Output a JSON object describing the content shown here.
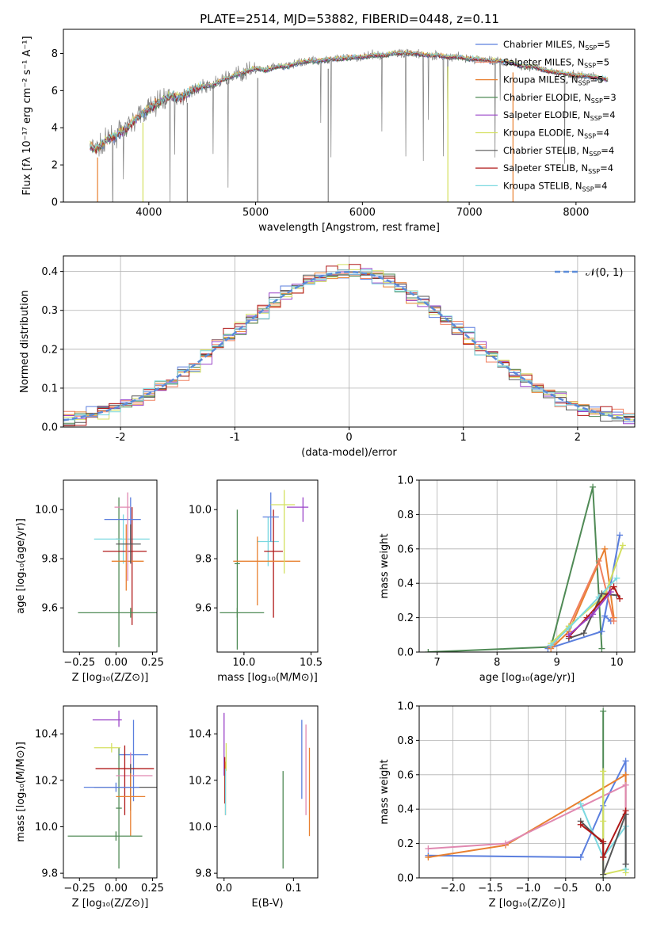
{
  "figure": {
    "title": "PLATE=2514, MJD=53882, FIBERID=0448, z=0.11"
  },
  "chart_data": [
    {
      "id": "spectrum",
      "type": "line",
      "xlabel": "wavelength [Angstrom, rest frame]",
      "ylabel": "Flux [fλ 10⁻¹⁷ erg cm⁻² s⁻¹ A⁻¹]",
      "xlim": [
        3200,
        8550
      ],
      "ylim": [
        0,
        9.3
      ],
      "xticks": [
        4000,
        5000,
        6000,
        7000,
        8000
      ],
      "yticks": [
        0,
        2,
        4,
        6,
        8
      ],
      "legend_position": "top-right",
      "observed": {
        "x": [
          3450,
          3500,
          3600,
          3700,
          3800,
          3900,
          4000,
          4100,
          4200,
          4300,
          4400,
          4500,
          4600,
          4700,
          4800,
          4900,
          5000,
          5100,
          5200,
          5300,
          5400,
          5500,
          5600,
          5700,
          5800,
          5900,
          6000,
          6100,
          6200,
          6300,
          6400,
          6500,
          6600,
          6700,
          6800,
          6900,
          7000,
          7100,
          7200,
          7300,
          7400,
          7500,
          7600,
          7700,
          7800,
          7900,
          8000,
          8100,
          8200,
          8300
        ],
        "y": [
          3.0,
          2.8,
          3.3,
          3.6,
          4.0,
          4.6,
          5.0,
          5.4,
          5.7,
          5.6,
          6.0,
          6.2,
          6.3,
          6.6,
          6.8,
          7.0,
          7.2,
          7.1,
          7.3,
          7.3,
          7.5,
          7.6,
          7.6,
          7.7,
          7.7,
          7.8,
          7.8,
          7.9,
          7.9,
          8.0,
          8.0,
          8.0,
          7.9,
          7.9,
          7.8,
          7.8,
          7.7,
          7.7,
          7.6,
          7.6,
          7.5,
          7.3,
          7.3,
          7.1,
          7.0,
          6.9,
          6.8,
          6.8,
          6.7,
          6.6
        ]
      },
      "series": [
        {
          "name": "Chabrier MILES, N",
          "sub": "SSP",
          "suffix": "=5",
          "color": "#5b7fde"
        },
        {
          "name": "Salpeter MILES, N",
          "sub": "SSP",
          "suffix": "=5",
          "color": "#f08060"
        },
        {
          "name": "Kroupa MILES, N",
          "sub": "SSP",
          "suffix": "=5",
          "color": "#e88030"
        },
        {
          "name": "Chabrier ELODIE, N",
          "sub": "SSP",
          "suffix": "=3",
          "color": "#4f8a55"
        },
        {
          "name": "Salpeter ELODIE, N",
          "sub": "SSP",
          "suffix": "=4",
          "color": "#9a44c8"
        },
        {
          "name": "Kroupa ELODIE, N",
          "sub": "SSP",
          "suffix": "=4",
          "color": "#d4e060"
        },
        {
          "name": "Chabrier STELIB, N",
          "sub": "SSP",
          "suffix": "=4",
          "color": "#555555"
        },
        {
          "name": "Salpeter STELIB, N",
          "sub": "SSP",
          "suffix": "=4",
          "color": "#b01818"
        },
        {
          "name": "Kroupa STELIB, N",
          "sub": "SSP",
          "suffix": "=4",
          "color": "#7ad8e0"
        }
      ]
    },
    {
      "id": "residuals",
      "type": "histogram",
      "xlabel": "(data-model)/error",
      "ylabel": "Normed distribution",
      "xlim": [
        -2.5,
        2.5
      ],
      "ylim": [
        0,
        0.44
      ],
      "xticks": [
        -2,
        -1,
        0,
        1,
        2
      ],
      "yticks": [
        0.0,
        0.1,
        0.2,
        0.3,
        0.4
      ],
      "grid": true,
      "legend_position": "top-right",
      "legend_label": "𝒩(0, 1)",
      "reference_color": "#5b8bd8",
      "bin_width": 0.1
    },
    {
      "id": "age-vs-Z",
      "type": "errorbar",
      "xlabel": "Z [log₁₀(Z/Z⊙)]",
      "ylabel": "age  [log₁₀(age/yr)]",
      "xlim": [
        -0.36,
        0.28
      ],
      "ylim": [
        9.42,
        10.12
      ],
      "xticks": [
        -0.25,
        0.0,
        0.25
      ],
      "xticklabels": [
        "−0.25",
        "0.00",
        "0.25"
      ],
      "yticks": [
        9.6,
        9.8,
        10.0
      ],
      "points": [
        {
          "x": 0.02,
          "xerr": [
            0.02,
            0.02
          ],
          "y": 9.88,
          "yerr": [
            0.44,
            0.17
          ],
          "color": "#4f8a55"
        },
        {
          "x": 0.05,
          "xerr": [
            0.2,
            0.18
          ],
          "y": 9.88,
          "yerr": [
            0.1,
            0.1
          ],
          "color": "#7ad8e0"
        },
        {
          "x": 0.11,
          "xerr": [
            0.2,
            0.1
          ],
          "y": 9.83,
          "yerr": [
            0.3,
            0.18
          ],
          "color": "#b01818"
        },
        {
          "x": 0.07,
          "xerr": [
            0.1,
            0.12
          ],
          "y": 9.79,
          "yerr": [
            0.12,
            0.15
          ],
          "color": "#e88030"
        },
        {
          "x": 0.1,
          "xerr": [
            0.18,
            0.07
          ],
          "y": 9.96,
          "yerr": [
            0.1,
            0.09
          ],
          "color": "#5b7fde"
        },
        {
          "x": 0.08,
          "xerr": [
            0.09,
            0.02
          ],
          "y": 10.01,
          "yerr": [
            0.3,
            0.06
          ],
          "color": "#e088b0"
        },
        {
          "x": 0.1,
          "xerr": [
            0.36,
            0.18
          ],
          "y": 9.58,
          "yerr": [
            0.02,
            0.02
          ],
          "color": "#4f8a55"
        },
        {
          "x": 0.1,
          "xerr": [
            0.1,
            0.07
          ],
          "y": 9.86,
          "yerr": [
            0.08,
            0.08
          ],
          "color": "#555555"
        }
      ]
    },
    {
      "id": "age-vs-mass",
      "type": "errorbar",
      "xlabel": "mass [log₁₀(M/M⊙)]",
      "ylabel": "",
      "xlim": [
        9.8,
        10.55
      ],
      "ylim": [
        9.42,
        10.12
      ],
      "xticks": [
        10.0,
        10.5
      ],
      "xticklabels": [
        "10.0",
        "10.5"
      ],
      "yticks": [
        9.6,
        9.8,
        10.0
      ],
      "points": [
        {
          "x": 9.95,
          "xerr": [
            0.02,
            0.02
          ],
          "y": 9.78,
          "yerr": [
            0.35,
            0.22
          ],
          "color": "#4f8a55"
        },
        {
          "x": 10.18,
          "xerr": [
            0.08,
            0.08
          ],
          "y": 9.87,
          "yerr": [
            0.1,
            0.1
          ],
          "color": "#7ad8e0"
        },
        {
          "x": 10.22,
          "xerr": [
            0.07,
            0.07
          ],
          "y": 9.83,
          "yerr": [
            0.27,
            0.17
          ],
          "color": "#b01818"
        },
        {
          "x": 10.1,
          "xerr": [
            0.18,
            0.32
          ],
          "y": 9.79,
          "yerr": [
            0.18,
            0.1
          ],
          "color": "#e88030"
        },
        {
          "x": 10.2,
          "xerr": [
            0.06,
            0.06
          ],
          "y": 9.97,
          "yerr": [
            0.1,
            0.1
          ],
          "color": "#5b7fde"
        },
        {
          "x": 10.3,
          "xerr": [
            0.1,
            0.08
          ],
          "y": 10.02,
          "yerr": [
            0.28,
            0.06
          ],
          "color": "#d4e060"
        },
        {
          "x": 10.44,
          "xerr": [
            0.12,
            0.04
          ],
          "y": 10.01,
          "yerr": [
            0.06,
            0.04
          ],
          "color": "#9a44c8"
        },
        {
          "x": 9.95,
          "xerr": [
            0.13,
            0.2
          ],
          "y": 9.58,
          "yerr": [
            0.02,
            0.02
          ],
          "color": "#4f8a55"
        }
      ]
    },
    {
      "id": "weight-vs-age",
      "type": "line",
      "xlabel": "age  [log₁₀(age/yr)]",
      "ylabel": "mass weight",
      "xlim": [
        6.7,
        10.3
      ],
      "ylim": [
        0,
        1.0
      ],
      "xticks": [
        7,
        8,
        9,
        10
      ],
      "yticks": [
        0.0,
        0.2,
        0.4,
        0.6,
        0.8,
        1.0
      ],
      "grid": true,
      "series": [
        {
          "color": "#4f8a55",
          "x": [
            6.85,
            8.9,
            9.6,
            9.75
          ],
          "y": [
            0.0,
            0.03,
            0.96,
            0.02
          ]
        },
        {
          "color": "#5b7fde",
          "x": [
            8.85,
            9.75,
            10.05,
            9.8,
            9.9
          ],
          "y": [
            0.02,
            0.12,
            0.68,
            0.21,
            0.18
          ]
        },
        {
          "color": "#e88030",
          "x": [
            8.9,
            9.2,
            9.8,
            9.95
          ],
          "y": [
            0.02,
            0.12,
            0.6,
            0.2
          ]
        },
        {
          "color": "#f08060",
          "x": [
            8.9,
            9.2,
            9.7,
            9.95
          ],
          "y": [
            0.03,
            0.15,
            0.53,
            0.18
          ]
        },
        {
          "color": "#d4e060",
          "x": [
            8.9,
            9.2,
            9.8,
            10.1
          ],
          "y": [
            0.05,
            0.15,
            0.33,
            0.62
          ]
        },
        {
          "color": "#7ad8e0",
          "x": [
            8.9,
            9.2,
            9.7,
            10.0
          ],
          "y": [
            0.04,
            0.14,
            0.32,
            0.43
          ]
        },
        {
          "color": "#555555",
          "x": [
            9.2,
            9.45,
            9.75,
            10.0
          ],
          "y": [
            0.08,
            0.11,
            0.34,
            0.33
          ]
        },
        {
          "color": "#b01818",
          "x": [
            9.2,
            9.5,
            9.95,
            10.05
          ],
          "y": [
            0.09,
            0.2,
            0.38,
            0.31
          ]
        },
        {
          "color": "#9a44c8",
          "x": [
            9.2,
            9.6,
            9.9
          ],
          "y": [
            0.1,
            0.22,
            0.35
          ]
        }
      ]
    },
    {
      "id": "mass-vs-Z",
      "type": "errorbar",
      "xlabel": "Z [log₁₀(Z/Z⊙)]",
      "ylabel": "mass [log₁₀(M/M⊙)]",
      "xlim": [
        -0.36,
        0.28
      ],
      "ylim": [
        9.78,
        10.52
      ],
      "xticks": [
        -0.25,
        0.0,
        0.25
      ],
      "xticklabels": [
        "−0.25",
        "0.00",
        "0.25"
      ],
      "yticks": [
        9.8,
        10.0,
        10.2,
        10.4
      ],
      "points": [
        {
          "x": 0.02,
          "xerr": [
            0.02,
            0.02
          ],
          "y": 10.08,
          "yerr": [
            0.26,
            0.26
          ],
          "color": "#4f8a55"
        },
        {
          "x": 0.02,
          "xerr": [
            0.18,
            0.02
          ],
          "y": 10.46,
          "yerr": [
            0.03,
            0.04
          ],
          "color": "#9a44c8"
        },
        {
          "x": -0.03,
          "xerr": [
            0.12,
            0.06
          ],
          "y": 10.34,
          "yerr": [
            0.02,
            0.02
          ],
          "color": "#d4e060"
        },
        {
          "x": 0.12,
          "xerr": [
            0.1,
            0.1
          ],
          "y": 10.31,
          "yerr": [
            0.2,
            0.15
          ],
          "color": "#5b7fde"
        },
        {
          "x": 0.1,
          "xerr": [
            0.1,
            0.15
          ],
          "y": 10.22,
          "yerr": [
            0.15,
            0.1
          ],
          "color": "#e088b0"
        },
        {
          "x": 0.06,
          "xerr": [
            0.2,
            0.2
          ],
          "y": 10.25,
          "yerr": [
            0.2,
            0.1
          ],
          "color": "#b01818"
        },
        {
          "x": 0.1,
          "xerr": [
            0.25,
            0.2
          ],
          "y": 10.17,
          "yerr": [
            0.1,
            0.1
          ],
          "color": "#555555"
        },
        {
          "x": 0.1,
          "xerr": [
            0.1,
            0.1
          ],
          "y": 10.13,
          "yerr": [
            0.17,
            0.1
          ],
          "color": "#e88030"
        },
        {
          "x": 0.0,
          "xerr": [
            0.33,
            0.18
          ],
          "y": 9.96,
          "yerr": [
            0.02,
            0.02
          ],
          "color": "#4f8a55"
        },
        {
          "x": 0.0,
          "xerr": [
            0.22,
            0.16
          ],
          "y": 10.17,
          "yerr": [
            0.02,
            0.02
          ],
          "color": "#5b7fde"
        }
      ]
    },
    {
      "id": "mass-vs-EBV",
      "type": "errorbar",
      "xlabel": "E(B-V)",
      "ylabel": "",
      "xlim": [
        -0.01,
        0.135
      ],
      "ylim": [
        9.78,
        10.52
      ],
      "xticks": [
        0.0,
        0.1
      ],
      "xticklabels": [
        "0.0",
        "0.1"
      ],
      "yticks": [
        9.8,
        10.0,
        10.2,
        10.4
      ],
      "points": [
        {
          "x": 0.0,
          "xerr": [
            0.0,
            0.0
          ],
          "y": 10.35,
          "yerr": [
            0.13,
            0.14
          ],
          "color": "#9a44c8"
        },
        {
          "x": 0.001,
          "xerr": [
            0.0,
            0.0
          ],
          "y": 10.2,
          "yerr": [
            0.1,
            0.1
          ],
          "color": "#b01818"
        },
        {
          "x": 0.002,
          "xerr": [
            0.0,
            0.0
          ],
          "y": 10.18,
          "yerr": [
            0.13,
            0.1
          ],
          "color": "#e88030"
        },
        {
          "x": 0.003,
          "xerr": [
            0.0,
            0.0
          ],
          "y": 10.3,
          "yerr": [
            0.06,
            0.06
          ],
          "color": "#d4e060"
        },
        {
          "x": 0.002,
          "xerr": [
            0.0,
            0.0
          ],
          "y": 10.15,
          "yerr": [
            0.1,
            0.1
          ],
          "color": "#7ad8e0"
        },
        {
          "x": 0.085,
          "xerr": [
            0.0,
            0.0
          ],
          "y": 10.03,
          "yerr": [
            0.21,
            0.21
          ],
          "color": "#4f8a55"
        },
        {
          "x": 0.112,
          "xerr": [
            0.0,
            0.0
          ],
          "y": 10.29,
          "yerr": [
            0.17,
            0.17
          ],
          "color": "#5b7fde"
        },
        {
          "x": 0.118,
          "xerr": [
            0.0,
            0.0
          ],
          "y": 10.24,
          "yerr": [
            0.19,
            0.2
          ],
          "color": "#e088b0"
        },
        {
          "x": 0.123,
          "xerr": [
            0.0,
            0.0
          ],
          "y": 10.15,
          "yerr": [
            0.19,
            0.19
          ],
          "color": "#e88030"
        }
      ]
    },
    {
      "id": "weight-vs-Z",
      "type": "line",
      "xlabel": "Z [log₁₀(Z/Z⊙)]",
      "ylabel": "mass weight",
      "xlim": [
        -2.45,
        0.42
      ],
      "ylim": [
        0,
        1.0
      ],
      "xticks": [
        -2.0,
        -1.5,
        -1.0,
        -0.5,
        0.0
      ],
      "xticklabels": [
        "−2.0",
        "−1.5",
        "−1.0",
        "−0.5",
        "0.0"
      ],
      "yticks": [
        0.0,
        0.2,
        0.4,
        0.6,
        0.8,
        1.0
      ],
      "grid": true,
      "series": [
        {
          "color": "#4f8a55",
          "x": [
            0.0,
            0.0,
            0.0
          ],
          "y": [
            0.12,
            0.97,
            0.0
          ]
        },
        {
          "color": "#5b7fde",
          "x": [
            -2.33,
            -0.3,
            0.0,
            0.3,
            0.3
          ],
          "y": [
            0.13,
            0.12,
            0.42,
            0.68,
            0.08
          ]
        },
        {
          "color": "#e88030",
          "x": [
            -2.33,
            -1.3,
            0.3,
            0.3
          ],
          "y": [
            0.12,
            0.19,
            0.6,
            0.05
          ]
        },
        {
          "color": "#e088b0",
          "x": [
            -2.33,
            -1.3,
            0.3,
            0.3
          ],
          "y": [
            0.17,
            0.2,
            0.54,
            0.08
          ]
        },
        {
          "color": "#d4e060",
          "x": [
            0.0,
            0.0,
            0.0,
            0.3,
            0.3
          ],
          "y": [
            0.62,
            0.33,
            0.02,
            0.05,
            0.03
          ]
        },
        {
          "color": "#7ad8e0",
          "x": [
            -0.3,
            0.0,
            0.3,
            0.3
          ],
          "y": [
            0.43,
            0.12,
            0.3,
            0.05
          ]
        },
        {
          "color": "#555555",
          "x": [
            -0.3,
            0.0,
            0.0,
            0.3,
            0.3
          ],
          "y": [
            0.33,
            0.2,
            0.02,
            0.37,
            0.08
          ]
        },
        {
          "color": "#b01818",
          "x": [
            -0.3,
            0.0,
            0.0,
            0.3
          ],
          "y": [
            0.31,
            0.21,
            0.12,
            0.39
          ]
        }
      ]
    }
  ]
}
